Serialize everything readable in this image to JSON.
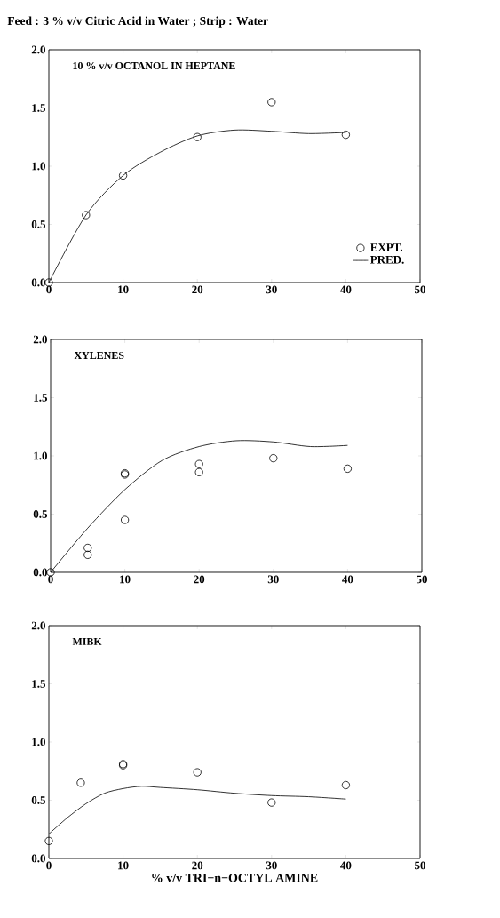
{
  "chart_data": [
    {
      "type": "scatter",
      "title": "Feed : 3 % v/v Citric Acid in Water ; Strip : Water",
      "annotations": [
        "10 % v/v  OCTANOL IN HEPTANE"
      ],
      "legend": "bottom right",
      "xlim": [
        0,
        50
      ],
      "xticks": [
        0,
        10,
        20,
        30,
        40,
        50
      ],
      "ylim": [
        0,
        2
      ],
      "yticks": [
        {
          "value": 0,
          "label": "0.0"
        },
        {
          "value": 0.5,
          "label": "0.5"
        },
        {
          "value": 1,
          "label": "1.0"
        },
        {
          "value": 1.5,
          "label": "1.5"
        },
        {
          "value": 2,
          "label": "2.0"
        }
      ],
      "series": [
        {
          "name": "EXPT.",
          "marker": "circle",
          "color": "#000000",
          "x": [
            0,
            5,
            10,
            20,
            30,
            40
          ],
          "values": [
            0,
            0.58,
            0.92,
            1.25,
            1.55,
            1.27
          ]
        },
        {
          "name": "PRED.",
          "type": "line",
          "color": "#000000",
          "x": [
            0,
            5,
            10,
            15,
            20,
            25,
            30,
            35,
            40
          ],
          "values": [
            0,
            0.58,
            0.92,
            1.12,
            1.26,
            1.31,
            1.3,
            1.28,
            1.29
          ]
        }
      ]
    },
    {
      "type": "scatter",
      "annotations": [
        "XYLENES"
      ],
      "xlim": [
        0,
        50
      ],
      "xticks": [
        0,
        10,
        20,
        30,
        40,
        50
      ],
      "ylim": [
        0,
        2
      ],
      "yticks": [
        {
          "value": 0,
          "label": "0.0"
        },
        {
          "value": 0.5,
          "label": "0.5"
        },
        {
          "value": 1,
          "label": "1.0"
        },
        {
          "value": 1.5,
          "label": "1.5"
        },
        {
          "value": 2,
          "label": "2.0"
        }
      ],
      "series": [
        {
          "marker": "circle",
          "color": "#000000",
          "x": [
            0,
            5,
            5,
            10,
            10,
            10,
            20,
            20,
            30,
            40
          ],
          "values": [
            0,
            0.21,
            0.15,
            0.85,
            0.84,
            0.45,
            0.93,
            0.86,
            0.98,
            0.89
          ]
        },
        {
          "type": "line",
          "color": "#000000",
          "x": [
            0,
            5,
            10,
            15,
            20,
            25,
            30,
            35,
            40
          ],
          "values": [
            0,
            0.38,
            0.71,
            0.96,
            1.08,
            1.13,
            1.12,
            1.08,
            1.09
          ]
        }
      ]
    },
    {
      "type": "scatter",
      "annotations": [
        "MIBK"
      ],
      "xlabel": "% v/v TRI−n−OCTYL AMINE",
      "xlim": [
        0,
        50
      ],
      "xticks": [
        0,
        10,
        20,
        30,
        40,
        50
      ],
      "ylim": [
        0,
        2
      ],
      "yticks": [
        {
          "value": 0,
          "label": "0.0"
        },
        {
          "value": 0.5,
          "label": "0.5"
        },
        {
          "value": 1,
          "label": "1.0"
        },
        {
          "value": 1.5,
          "label": "1.5"
        },
        {
          "value": 2,
          "label": "2.0"
        }
      ],
      "series": [
        {
          "marker": "circle",
          "color": "#000000",
          "x": [
            0,
            4.3,
            10,
            10,
            20,
            30,
            40
          ],
          "values": [
            0.15,
            0.65,
            0.8,
            0.81,
            0.74,
            0.48,
            0.63
          ]
        },
        {
          "type": "line",
          "color": "#000000",
          "x": [
            0,
            2.5,
            5,
            7.5,
            10,
            12.5,
            15,
            20,
            25,
            30,
            35,
            40
          ],
          "values": [
            0.21,
            0.35,
            0.47,
            0.56,
            0.6,
            0.62,
            0.61,
            0.59,
            0.56,
            0.54,
            0.53,
            0.51
          ]
        }
      ]
    }
  ]
}
